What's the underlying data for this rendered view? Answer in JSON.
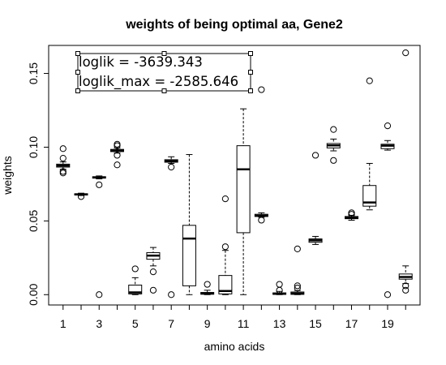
{
  "chart_data": {
    "type": "boxplot",
    "title": "weights of being optimal aa, Gene2",
    "xlabel": "amino acids",
    "ylabel": "weights",
    "xlim": [
      0.2,
      20.8
    ],
    "ylim": [
      -0.007,
      0.169
    ],
    "x_ticks": [
      1,
      3,
      5,
      7,
      9,
      11,
      13,
      15,
      17,
      19
    ],
    "y_ticks": [
      "0.00",
      "0.05",
      "0.10",
      "0.15"
    ],
    "y_tick_values": [
      0.0,
      0.05,
      0.1,
      0.15
    ],
    "grid": false,
    "annotation": {
      "lines": [
        "loglik = -3639.343",
        "loglik_max = -2585.646"
      ],
      "placement": "top-left"
    },
    "boxes": [
      {
        "x": 1,
        "lw": 0.085,
        "q1": 0.0865,
        "med": 0.0875,
        "q3": 0.0885,
        "uw": 0.09,
        "outliers": [
          0.0825,
          0.0835,
          0.0925,
          0.099
        ]
      },
      {
        "x": 2,
        "lw": 0.0672,
        "q1": 0.0676,
        "med": 0.068,
        "q3": 0.0684,
        "uw": 0.0688,
        "outliers": [
          0.0665
        ]
      },
      {
        "x": 3,
        "lw": 0.0785,
        "q1": 0.079,
        "med": 0.0795,
        "q3": 0.08,
        "uw": 0.0805,
        "outliers": [
          0.0745,
          0.0
        ]
      },
      {
        "x": 4,
        "lw": 0.096,
        "q1": 0.097,
        "med": 0.0978,
        "q3": 0.0985,
        "uw": 0.0995,
        "outliers": [
          0.101,
          0.102,
          0.0945,
          0.088
        ]
      },
      {
        "x": 5,
        "lw": 0.0,
        "q1": 0.0005,
        "med": 0.0015,
        "q3": 0.0065,
        "uw": 0.0115,
        "outliers": [
          0.0175
        ]
      },
      {
        "x": 6,
        "lw": 0.0195,
        "q1": 0.024,
        "med": 0.0265,
        "q3": 0.0285,
        "uw": 0.032,
        "outliers": [
          0.0155,
          0.003
        ]
      },
      {
        "x": 7,
        "lw": 0.089,
        "q1": 0.0898,
        "med": 0.0906,
        "q3": 0.0915,
        "uw": 0.0935,
        "outliers": [
          0.0865,
          0.0
        ]
      },
      {
        "x": 8,
        "lw": 0.0,
        "q1": 0.006,
        "med": 0.038,
        "q3": 0.047,
        "uw": 0.095,
        "outliers": []
      },
      {
        "x": 9,
        "lw": 0.0,
        "q1": 0.0003,
        "med": 0.0008,
        "q3": 0.0015,
        "uw": 0.003,
        "outliers": [
          0.007
        ]
      },
      {
        "x": 10,
        "lw": 0.0,
        "q1": 0.0005,
        "med": 0.0025,
        "q3": 0.013,
        "uw": 0.03,
        "outliers": [
          0.0325,
          0.065
        ]
      },
      {
        "x": 11,
        "lw": 0.0,
        "q1": 0.042,
        "med": 0.085,
        "q3": 0.101,
        "uw": 0.126,
        "outliers": []
      },
      {
        "x": 12,
        "lw": 0.0525,
        "q1": 0.053,
        "med": 0.0536,
        "q3": 0.0545,
        "uw": 0.0555,
        "outliers": [
          0.0505,
          0.139
        ]
      },
      {
        "x": 13,
        "lw": 0.0,
        "q1": 0.0002,
        "med": 0.0006,
        "q3": 0.0012,
        "uw": 0.0022,
        "outliers": [
          0.003,
          0.007
        ]
      },
      {
        "x": 14,
        "lw": 0.0,
        "q1": 0.0002,
        "med": 0.0008,
        "q3": 0.0018,
        "uw": 0.0028,
        "outliers": [
          0.0045,
          0.006,
          0.031
        ]
      },
      {
        "x": 15,
        "lw": 0.034,
        "q1": 0.0355,
        "med": 0.0368,
        "q3": 0.0378,
        "uw": 0.0395,
        "outliers": [
          0.0945
        ]
      },
      {
        "x": 16,
        "lw": 0.0975,
        "q1": 0.0995,
        "med": 0.1012,
        "q3": 0.1025,
        "uw": 0.1055,
        "outliers": [
          0.091,
          0.112
        ]
      },
      {
        "x": 17,
        "lw": 0.0505,
        "q1": 0.0515,
        "med": 0.0522,
        "q3": 0.053,
        "uw": 0.0538,
        "outliers": [
          0.0545,
          0.0555
        ]
      },
      {
        "x": 18,
        "lw": 0.0575,
        "q1": 0.06,
        "med": 0.0625,
        "q3": 0.074,
        "uw": 0.089,
        "outliers": [
          0.145
        ]
      },
      {
        "x": 19,
        "lw": 0.098,
        "q1": 0.099,
        "med": 0.101,
        "q3": 0.102,
        "uw": 0.1045,
        "outliers": [
          0.1145,
          0.0
        ]
      },
      {
        "x": 20,
        "lw": 0.0075,
        "q1": 0.0105,
        "med": 0.012,
        "q3": 0.014,
        "uw": 0.0195,
        "outliers": [
          0.003,
          0.006,
          0.164
        ]
      }
    ]
  }
}
